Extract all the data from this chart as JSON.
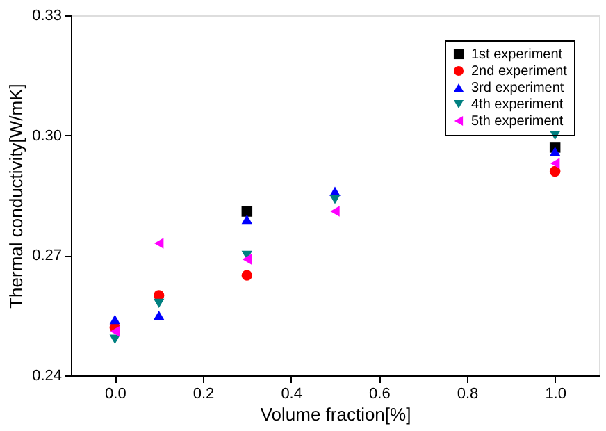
{
  "chart_data": {
    "type": "scatter",
    "xlabel": "Volume fraction[%]",
    "ylabel": "Thermal conductivity[W/mK]",
    "x": [
      0.0,
      0.1,
      0.3,
      0.5,
      1.0
    ],
    "series": [
      {
        "name": "1st experiment",
        "color": "#000000",
        "marker": "square",
        "values": [
          null,
          null,
          0.281,
          null,
          0.297
        ]
      },
      {
        "name": "2nd experiment",
        "color": "#ff0000",
        "marker": "circle",
        "values": [
          0.252,
          0.26,
          0.265,
          null,
          0.291
        ]
      },
      {
        "name": "3rd experiment",
        "color": "#0000ff",
        "marker": "triangle",
        "values": [
          0.254,
          0.255,
          0.279,
          0.286,
          0.296
        ]
      },
      {
        "name": "4th experiment",
        "color": "#008080",
        "marker": "triangle-down",
        "values": [
          0.249,
          0.258,
          0.27,
          0.284,
          0.3
        ]
      },
      {
        "name": "5th experiment",
        "color": "#ff00ff",
        "marker": "triangle-left",
        "values": [
          0.251,
          0.273,
          0.269,
          0.281,
          0.293
        ]
      }
    ],
    "xlim": [
      -0.1,
      1.1
    ],
    "ylim": [
      0.24,
      0.33
    ],
    "xticks": [
      {
        "value": 0,
        "label": "0.0"
      },
      {
        "value": 0.2,
        "label": "0.2"
      },
      {
        "value": 0.4,
        "label": "0.4"
      },
      {
        "value": 0.6,
        "label": "0.6"
      },
      {
        "value": 0.8,
        "label": "0.8"
      },
      {
        "value": 1,
        "label": "1.0"
      }
    ],
    "yticks": [
      {
        "value": 0.24,
        "label": "0.24"
      },
      {
        "value": 0.27,
        "label": "0.27"
      },
      {
        "value": 0.3,
        "label": "0.30"
      },
      {
        "value": 0.33,
        "label": "0.33"
      }
    ],
    "grid": false,
    "legend": "top right"
  }
}
